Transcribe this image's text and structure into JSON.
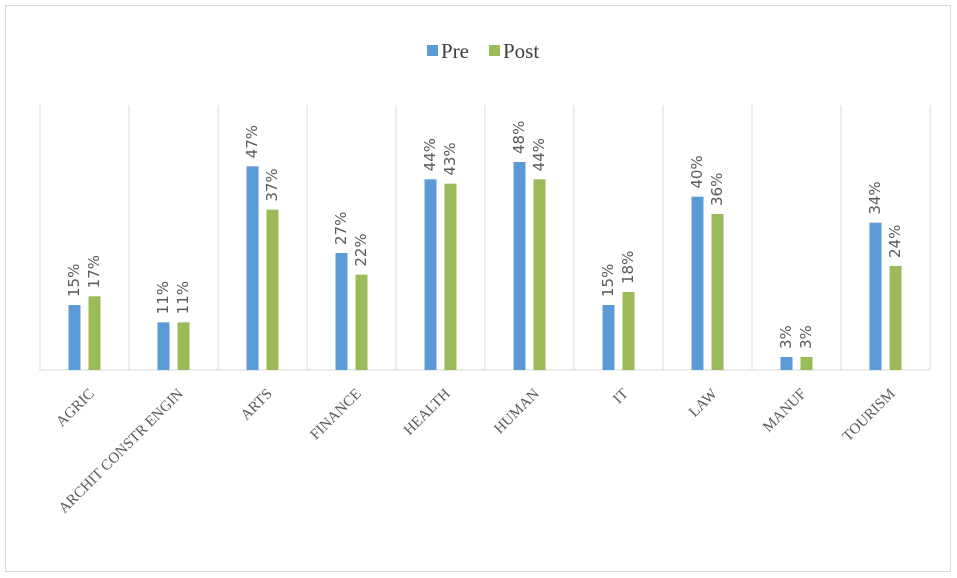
{
  "chart_data": {
    "type": "bar",
    "categories": [
      "AGRIC",
      "ARCHIT  CONSTR ENGIN",
      "ARTS",
      "FINANCE",
      "HEALTH",
      "HUMAN",
      "IT",
      "LAW",
      "MANUF",
      "TOURISM"
    ],
    "series": [
      {
        "name": "Pre",
        "color": "#5b9bd5",
        "values": [
          15,
          11,
          47,
          27,
          44,
          48,
          15,
          40,
          3,
          34
        ],
        "value_labels": [
          "15%",
          "11%",
          "47%",
          "27%",
          "44%",
          "48%",
          "15%",
          "40%",
          "3%",
          "34%"
        ]
      },
      {
        "name": "Post",
        "color": "#9bbb59",
        "values": [
          17,
          11,
          37,
          22,
          43,
          44,
          18,
          36,
          3,
          24
        ],
        "value_labels": [
          "17%",
          "11%",
          "37%",
          "22%",
          "43%",
          "44%",
          "18%",
          "36%",
          "3%",
          "24%"
        ]
      }
    ],
    "ylim": [
      0,
      60
    ],
    "legend": "top"
  }
}
